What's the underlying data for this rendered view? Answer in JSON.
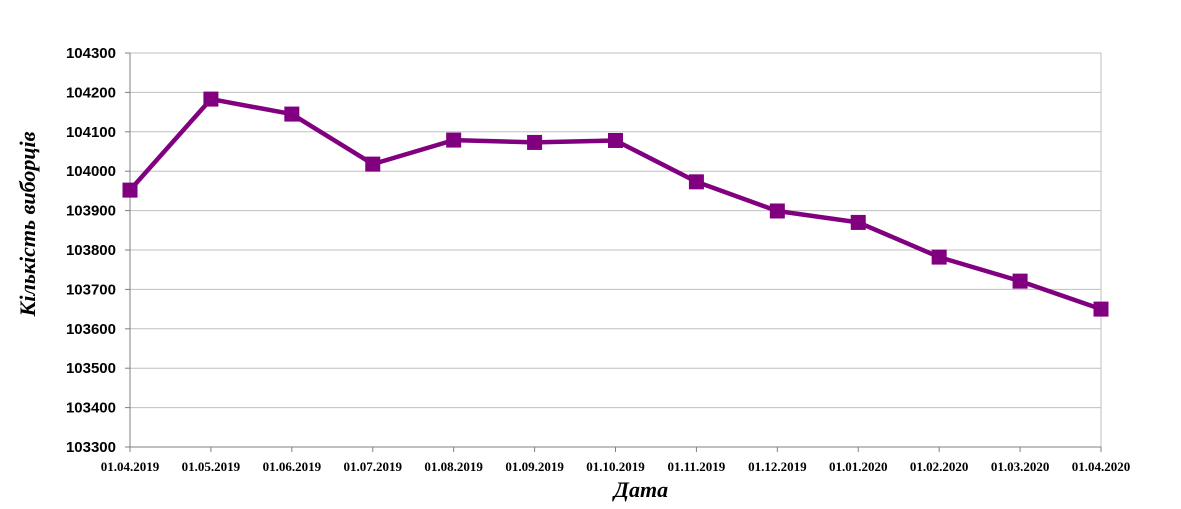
{
  "chart_data": {
    "type": "line",
    "title": "",
    "xlabel": "Дата",
    "ylabel": "Кількість виборців",
    "categories": [
      "01.04.2019",
      "01.05.2019",
      "01.06.2019",
      "01.07.2019",
      "01.08.2019",
      "01.09.2019",
      "01.10.2019",
      "01.11.2019",
      "01.12.2019",
      "01.01.2020",
      "01.02.2020",
      "01.03.2020",
      "01.04.2020"
    ],
    "series": [
      {
        "values": [
          103952,
          104183,
          104145,
          104018,
          104079,
          104073,
          104078,
          103973,
          103899,
          103870,
          103782,
          103721,
          103650
        ],
        "color": "#800080",
        "marker": "square"
      }
    ],
    "ylim": [
      103300,
      104300
    ],
    "yticks": [
      103300,
      103400,
      103500,
      103600,
      103700,
      103800,
      103900,
      104000,
      104100,
      104200,
      104300
    ],
    "grid": "horizontal",
    "legend": "none"
  }
}
